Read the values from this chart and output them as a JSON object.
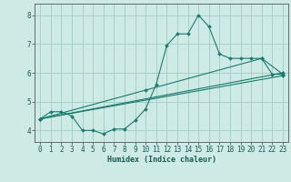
{
  "xlabel": "Humidex (Indice chaleur)",
  "xlim": [
    -0.5,
    23.5
  ],
  "ylim": [
    3.6,
    8.4
  ],
  "xticks": [
    0,
    1,
    2,
    3,
    4,
    5,
    6,
    7,
    8,
    9,
    10,
    11,
    12,
    13,
    14,
    15,
    16,
    17,
    18,
    19,
    20,
    21,
    22,
    23
  ],
  "yticks": [
    4,
    5,
    6,
    7,
    8
  ],
  "bg_color": "#ceeae4",
  "grid_color": "#a0ccc6",
  "line_color": "#1a7a6e",
  "lines": [
    {
      "x": [
        0,
        1,
        2,
        3,
        4,
        5,
        6,
        7,
        8,
        9,
        10,
        11,
        12,
        13,
        14,
        15,
        16,
        17,
        18,
        19,
        20,
        21,
        22,
        23
      ],
      "y": [
        4.4,
        4.65,
        4.65,
        4.5,
        4.0,
        4.0,
        3.88,
        4.05,
        4.05,
        4.35,
        4.75,
        5.6,
        6.95,
        7.35,
        7.35,
        8.0,
        7.6,
        6.65,
        6.5,
        6.5,
        6.5,
        6.5,
        5.95,
        5.95
      ]
    },
    {
      "x": [
        0,
        23
      ],
      "y": [
        4.4,
        5.9
      ]
    },
    {
      "x": [
        0,
        23
      ],
      "y": [
        4.4,
        6.0
      ]
    },
    {
      "x": [
        0,
        10,
        21,
        23
      ],
      "y": [
        4.4,
        5.4,
        6.5,
        5.95
      ]
    }
  ]
}
